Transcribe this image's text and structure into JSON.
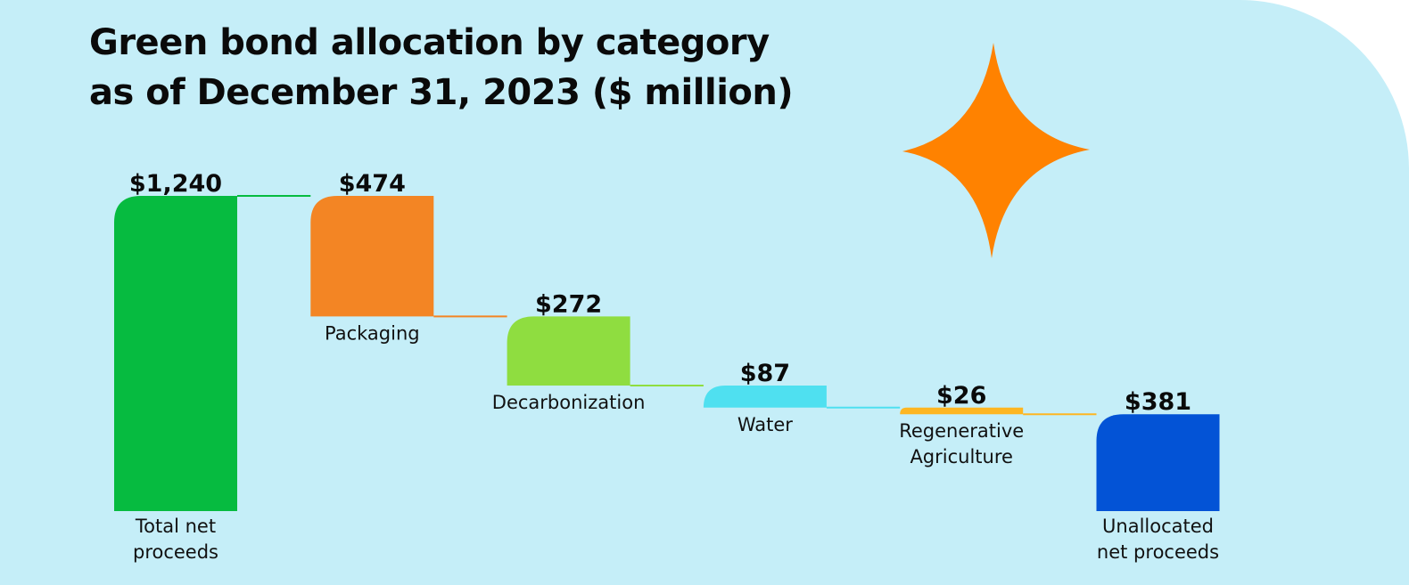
{
  "title_lines": [
    "Green bond allocation by category",
    "as of December 31, 2023 ($ million)"
  ],
  "chart_data": {
    "type": "bar",
    "variant": "waterfall",
    "title": "Green bond allocation by category as of December 31, 2023 ($ million)",
    "xlabel": "",
    "ylabel": "",
    "ylim": [
      0,
      1240
    ],
    "grid": false,
    "legend": "none",
    "bars": [
      {
        "category": [
          "Total net",
          "proceeds"
        ],
        "value": 1240,
        "label": "$1,240",
        "kind": "total",
        "color": "#06bb40"
      },
      {
        "category": [
          "Packaging"
        ],
        "value": 474,
        "label": "$474",
        "kind": "decrease",
        "color": "#f38524"
      },
      {
        "category": [
          "Decarbonization"
        ],
        "value": 272,
        "label": "$272",
        "kind": "decrease",
        "color": "#8fdd40"
      },
      {
        "category": [
          "Water"
        ],
        "value": 87,
        "label": "$87",
        "kind": "decrease",
        "color": "#4fe0f0"
      },
      {
        "category": [
          "Regenerative",
          "Agriculture"
        ],
        "value": 26,
        "label": "$26",
        "kind": "decrease",
        "color": "#fdb622"
      },
      {
        "category": [
          "Unallocated",
          "net proceeds"
        ],
        "value": 381,
        "label": "$381",
        "kind": "total",
        "color": "#0353d6"
      }
    ]
  },
  "decoration": {
    "sparkle_icon_color": "#ff8200"
  }
}
